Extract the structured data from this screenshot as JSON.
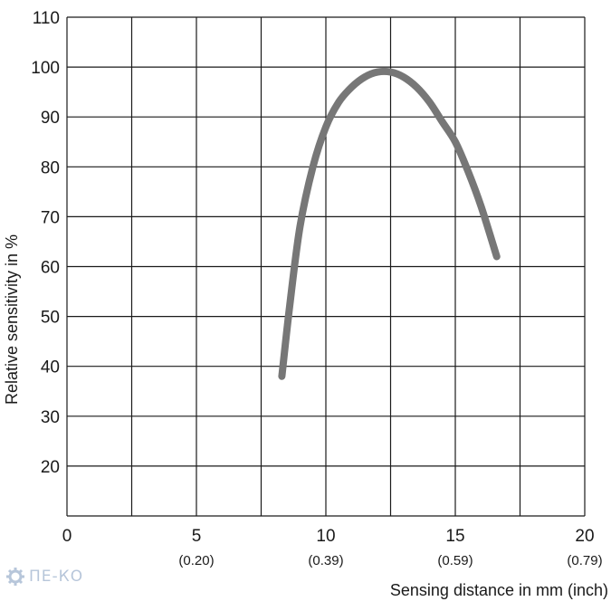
{
  "chart_data": {
    "type": "line",
    "title": "",
    "xlabel": "Sensing distance in mm (inch)",
    "ylabel": "Relative sensitivity in %",
    "xlim": [
      0,
      20
    ],
    "ylim": [
      10,
      110
    ],
    "grid": true,
    "x_ticks": [
      {
        "value": 0,
        "label": "0",
        "sub": ""
      },
      {
        "value": 5,
        "label": "5",
        "sub": "(0.20)"
      },
      {
        "value": 10,
        "label": "10",
        "sub": "(0.39)"
      },
      {
        "value": 15,
        "label": "15",
        "sub": "(0.59)"
      },
      {
        "value": 20,
        "label": "20",
        "sub": "(0.79)"
      }
    ],
    "y_ticks": [
      {
        "value": 20,
        "label": "20"
      },
      {
        "value": 30,
        "label": "30"
      },
      {
        "value": 40,
        "label": "40"
      },
      {
        "value": 50,
        "label": "50"
      },
      {
        "value": 60,
        "label": "60"
      },
      {
        "value": 70,
        "label": "70"
      },
      {
        "value": 80,
        "label": "80"
      },
      {
        "value": 90,
        "label": "90"
      },
      {
        "value": 100,
        "label": "100"
      },
      {
        "value": 110,
        "label": "110"
      }
    ],
    "series": [
      {
        "color": "#777777",
        "points": [
          [
            8.3,
            38
          ],
          [
            8.6,
            52
          ],
          [
            9.0,
            68
          ],
          [
            9.5,
            80
          ],
          [
            10.0,
            88
          ],
          [
            10.5,
            93
          ],
          [
            11.0,
            96
          ],
          [
            11.5,
            98
          ],
          [
            12.0,
            99
          ],
          [
            12.5,
            99
          ],
          [
            13.0,
            98
          ],
          [
            13.5,
            96
          ],
          [
            14.0,
            93
          ],
          [
            14.5,
            89
          ],
          [
            15.0,
            85
          ],
          [
            15.5,
            79
          ],
          [
            16.0,
            72
          ],
          [
            16.6,
            62
          ]
        ]
      }
    ]
  },
  "watermark": {
    "text": "ПЕ-КО",
    "icon": "gear-icon"
  }
}
